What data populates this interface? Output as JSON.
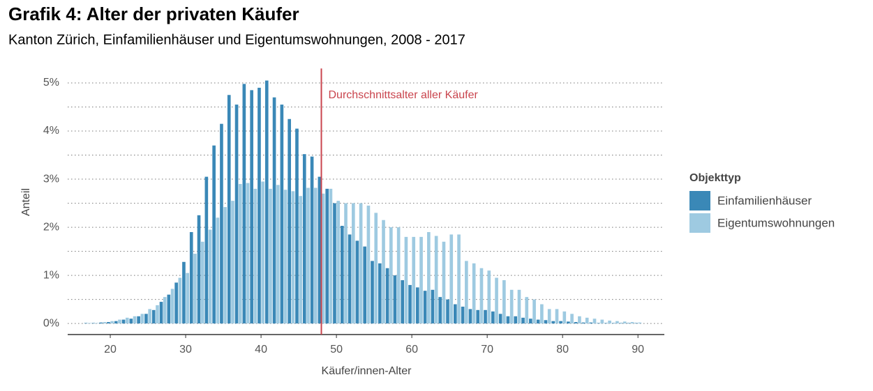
{
  "chart_data": {
    "type": "bar",
    "title": "Grafik 4: Alter der privaten Käufer",
    "subtitle": "Kanton Zürich, Einfamilienhäuser und Eigentumswohnungen, 2008 - 2017",
    "x_label": "Käufer/innen-Alter",
    "y_label": "Anteil",
    "legend_title": "Objekttyp",
    "legend_position": "right",
    "x": [
      17,
      18,
      19,
      20,
      21,
      22,
      23,
      24,
      25,
      26,
      27,
      28,
      29,
      30,
      31,
      32,
      33,
      34,
      35,
      36,
      37,
      38,
      39,
      40,
      41,
      42,
      43,
      44,
      45,
      46,
      47,
      48,
      49,
      50,
      51,
      52,
      53,
      54,
      55,
      56,
      57,
      58,
      59,
      60,
      61,
      62,
      63,
      64,
      65,
      66,
      67,
      68,
      69,
      70,
      71,
      72,
      73,
      74,
      75,
      76,
      77,
      78,
      79,
      80,
      81,
      82,
      83,
      84,
      85,
      86,
      87,
      88,
      89,
      90
    ],
    "series": [
      {
        "name": "Einfamilienhäuser",
        "color": "#3a88b7",
        "values": [
          0.01,
          0.01,
          0.02,
          0.03,
          0.05,
          0.08,
          0.1,
          0.15,
          0.2,
          0.28,
          0.45,
          0.6,
          0.85,
          1.28,
          1.9,
          2.25,
          3.05,
          3.7,
          4.15,
          4.75,
          4.55,
          4.98,
          4.85,
          4.9,
          5.05,
          4.7,
          4.55,
          4.25,
          4.05,
          3.52,
          3.47,
          3.05,
          2.8,
          2.5,
          2.03,
          1.85,
          1.72,
          1.6,
          1.3,
          1.25,
          1.15,
          1.0,
          0.9,
          0.8,
          0.75,
          0.68,
          0.7,
          0.55,
          0.5,
          0.4,
          0.35,
          0.3,
          0.28,
          0.28,
          0.25,
          0.2,
          0.15,
          0.15,
          0.12,
          0.1,
          0.08,
          0.07,
          0.05,
          0.05,
          0.04,
          0.03,
          0.02,
          0.02,
          0.01,
          0.01,
          0.01,
          0.01,
          0.01,
          0.01
        ]
      },
      {
        "name": "Eigentumswohnungen",
        "color": "#9ecae1",
        "values": [
          0.01,
          0.01,
          0.03,
          0.05,
          0.08,
          0.12,
          0.15,
          0.2,
          0.3,
          0.38,
          0.55,
          0.72,
          0.95,
          1.05,
          1.45,
          1.7,
          1.95,
          2.2,
          2.42,
          2.55,
          2.9,
          2.92,
          2.8,
          2.95,
          2.8,
          2.88,
          2.78,
          2.75,
          2.65,
          2.82,
          2.82,
          2.7,
          2.8,
          2.55,
          2.5,
          2.5,
          2.5,
          2.45,
          2.3,
          2.15,
          2.0,
          2.0,
          1.8,
          1.8,
          1.8,
          1.9,
          1.82,
          1.7,
          1.85,
          1.85,
          1.3,
          1.25,
          1.15,
          1.1,
          0.95,
          0.9,
          0.7,
          0.7,
          0.55,
          0.5,
          0.4,
          0.3,
          0.3,
          0.25,
          0.2,
          0.15,
          0.12,
          0.1,
          0.08,
          0.06,
          0.05,
          0.04,
          0.03,
          0.02
        ]
      }
    ],
    "xlim": [
      14.35,
      93.5
    ],
    "xticks": [
      20,
      30,
      40,
      50,
      60,
      70,
      80,
      90
    ],
    "ylim": [
      -0.23,
      5.3
    ],
    "yticks": [
      {
        "value": 0,
        "label": "0%"
      },
      {
        "value": 1,
        "label": "1%"
      },
      {
        "value": 2,
        "label": "2%"
      },
      {
        "value": 3,
        "label": "3%"
      },
      {
        "value": 4,
        "label": "4%"
      },
      {
        "value": 5,
        "label": "5%"
      }
    ],
    "minor_yticks": [
      0.5,
      1.5,
      2.5,
      3.5,
      4.5
    ],
    "grid": true,
    "vline": {
      "value": 48,
      "label": "Durchschnittsalter aller Käufer",
      "color": "#c9444d"
    }
  }
}
